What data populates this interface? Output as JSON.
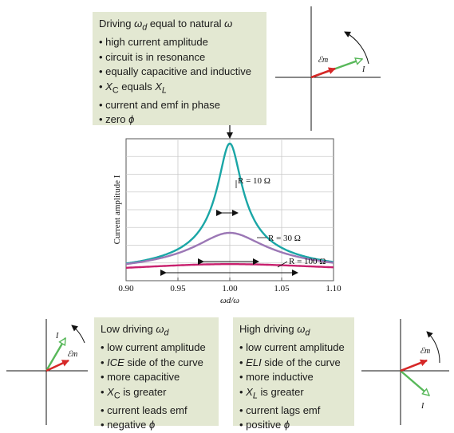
{
  "boxes": {
    "resonance": {
      "title": "Driving ωd equal to natural ω",
      "items": [
        "high current amplitude",
        "circuit is in resonance",
        "equally capacitive and inductive",
        "XC equals XL",
        "current and emf in phase",
        "zero ϕ"
      ]
    },
    "low": {
      "title": "Low driving ωd",
      "items": [
        "low current amplitude",
        "ICE side of the curve",
        "more capacitive",
        "XC is greater",
        "current leads emf",
        "negative ϕ"
      ]
    },
    "high": {
      "title": "High driving ωd",
      "items": [
        "low current amplitude",
        "ELI side of the curve",
        "more inductive",
        "XL is greater",
        "current lags emf",
        "positive ϕ"
      ]
    }
  },
  "phasor_labels": {
    "emf": "ℰm",
    "current": "I"
  },
  "colors": {
    "box_bg": "#e3e8d2",
    "teal": "#1aa6a6",
    "purple": "#9b77b5",
    "magenta": "#c8206e",
    "emf_red": "#d62828",
    "current_green": "#58b85a"
  },
  "chart_data": {
    "type": "line",
    "xlabel": "ωd/ω",
    "ylabel": "Current amplitude I",
    "x_ticks": [
      "0.90",
      "0.95",
      "1.00",
      "1.05",
      "1.10"
    ],
    "xlim": [
      0.9,
      1.1
    ],
    "series": [
      {
        "name": "R = 10 Ω",
        "R": 10,
        "color": "#1aa6a6"
      },
      {
        "name": "R = 30 Ω",
        "R": 30,
        "color": "#9b77b5"
      },
      {
        "name": "R = 100 Ω",
        "R": 100,
        "color": "#c8206e"
      }
    ]
  }
}
